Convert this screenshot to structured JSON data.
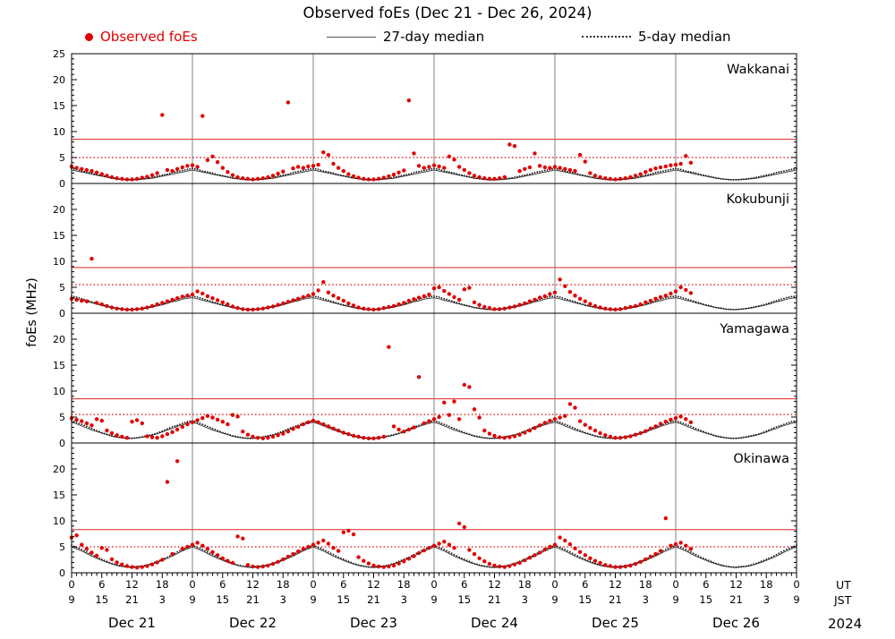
{
  "chart_data": {
    "type": "scatter",
    "title": "Observed foEs (Dec 21 - Dec 26, 2024)",
    "ylabel": "foEs (MHz)",
    "ylim": [
      0,
      25
    ],
    "y_major_ticks": [
      0,
      5,
      10,
      15,
      20,
      25
    ],
    "x_hours_range": [
      0,
      144
    ],
    "grid": "day-boundary vertical lines",
    "legend_position": "top",
    "legend": [
      {
        "label": "Observed foEs",
        "marker": "red-dot",
        "color": "#e00000"
      },
      {
        "label": "27-day median",
        "marker": "solid-line",
        "color": "#555555"
      },
      {
        "label": "5-day median",
        "marker": "dotted-line",
        "color": "#333333"
      }
    ],
    "axis_corner": {
      "ut": "UT",
      "jst": "JST",
      "year": "2024"
    },
    "x_ticks": [
      [
        0,
        "0",
        "9"
      ],
      [
        6,
        "6",
        "15"
      ],
      [
        12,
        "12",
        "21"
      ],
      [
        18,
        "18",
        "3"
      ],
      [
        24,
        "0",
        "9"
      ],
      [
        30,
        "6",
        "15"
      ],
      [
        36,
        "12",
        "21"
      ],
      [
        42,
        "18",
        "3"
      ],
      [
        48,
        "0",
        "9"
      ],
      [
        54,
        "6",
        "15"
      ],
      [
        60,
        "12",
        "21"
      ],
      [
        66,
        "18",
        "3"
      ],
      [
        72,
        "0",
        "9"
      ],
      [
        78,
        "6",
        "15"
      ],
      [
        84,
        "12",
        "21"
      ],
      [
        90,
        "18",
        "3"
      ],
      [
        96,
        "0",
        "9"
      ],
      [
        102,
        "6",
        "15"
      ],
      [
        108,
        "12",
        "21"
      ],
      [
        114,
        "18",
        "3"
      ],
      [
        120,
        "0",
        "9"
      ],
      [
        126,
        "6",
        "15"
      ],
      [
        132,
        "12",
        "21"
      ],
      [
        138,
        "18",
        "3"
      ],
      [
        144,
        "0",
        "9"
      ]
    ],
    "day_labels": [
      [
        "Dec 21",
        12
      ],
      [
        "Dec 22",
        36
      ],
      [
        "Dec 23",
        60
      ],
      [
        "Dec 24",
        84
      ],
      [
        "Dec 25",
        108
      ],
      [
        "Dec 26",
        132
      ]
    ],
    "colors": {
      "red": "#e00000",
      "median27": "#404040",
      "median5": "#111111",
      "daygrid": "#808080"
    },
    "panels": [
      {
        "station": "Wakkanai",
        "thresholds": {
          "solid_red": 8.5,
          "dotted_red": 5.0
        },
        "observed_hourly": [
          3.3,
          3.0,
          2.8,
          2.6,
          2.4,
          2.1,
          1.8,
          1.5,
          1.2,
          1.0,
          0.9,
          0.8,
          0.8,
          0.9,
          1.1,
          1.3,
          1.6,
          2.0,
          13.2,
          2.6,
          2.4,
          2.8,
          3.1,
          3.4,
          3.5,
          3.2,
          13.0,
          4.5,
          5.2,
          4.1,
          3.0,
          2.2,
          1.6,
          1.2,
          1.0,
          0.9,
          0.8,
          0.9,
          1.0,
          1.2,
          1.5,
          1.9,
          2.3,
          15.6,
          2.9,
          3.2,
          3.0,
          3.3,
          3.4,
          3.6,
          6.0,
          5.5,
          3.8,
          3.0,
          2.4,
          1.8,
          1.4,
          1.1,
          0.9,
          0.8,
          0.8,
          0.9,
          1.1,
          1.4,
          1.7,
          2.1,
          2.5,
          16.0,
          5.8,
          3.4,
          3.0,
          3.2,
          3.5,
          3.3,
          3.0,
          5.2,
          4.6,
          3.2,
          2.6,
          2.0,
          1.5,
          1.2,
          1.0,
          0.9,
          0.9,
          1.0,
          1.2,
          7.5,
          7.2,
          2.4,
          2.8,
          3.1,
          5.8,
          3.4,
          3.1,
          3.0,
          3.2,
          3.0,
          2.8,
          2.6,
          2.4,
          5.5,
          4.2,
          2.0,
          1.5,
          1.2,
          1.0,
          0.9,
          0.8,
          0.9,
          1.0,
          1.2,
          1.5,
          1.8,
          2.2,
          2.6,
          2.9,
          3.1,
          3.3,
          3.5,
          3.6,
          3.8,
          5.3,
          4.0
        ],
        "median27_diurnal": [
          2.6,
          2.4,
          2.2,
          2.0,
          1.8,
          1.6,
          1.4,
          1.2,
          1.0,
          0.9,
          0.8,
          0.7,
          0.7,
          0.7,
          0.8,
          0.9,
          1.0,
          1.2,
          1.4,
          1.6,
          1.8,
          2.0,
          2.2,
          2.4
        ],
        "median5_diurnal": [
          2.9,
          2.7,
          2.4,
          2.2,
          2.0,
          1.7,
          1.5,
          1.3,
          1.1,
          0.9,
          0.8,
          0.7,
          0.7,
          0.8,
          0.9,
          1.0,
          1.2,
          1.4,
          1.6,
          1.8,
          2.1,
          2.3,
          2.5,
          2.7
        ]
      },
      {
        "station": "Kokubunji",
        "thresholds": {
          "solid_red": 8.8,
          "dotted_red": 5.5
        },
        "observed_hourly": [
          2.8,
          2.6,
          2.4,
          2.3,
          10.5,
          2.0,
          1.7,
          1.4,
          1.1,
          0.9,
          0.8,
          0.7,
          0.7,
          0.8,
          0.9,
          1.1,
          1.4,
          1.7,
          2.0,
          2.3,
          2.6,
          2.9,
          3.2,
          3.4,
          3.6,
          4.2,
          3.8,
          3.3,
          2.9,
          2.5,
          2.1,
          1.7,
          1.3,
          1.0,
          0.8,
          0.7,
          0.7,
          0.8,
          0.9,
          1.1,
          1.3,
          1.6,
          1.9,
          2.2,
          2.5,
          2.8,
          3.1,
          3.4,
          3.7,
          4.4,
          6.0,
          4.0,
          3.4,
          2.9,
          2.4,
          1.9,
          1.5,
          1.1,
          0.9,
          0.8,
          0.7,
          0.8,
          1.0,
          1.2,
          1.4,
          1.7,
          2.0,
          2.4,
          2.7,
          3.0,
          3.3,
          3.6,
          4.8,
          5.0,
          4.3,
          3.7,
          3.1,
          2.6,
          4.6,
          4.9,
          2.1,
          1.6,
          1.2,
          1.0,
          0.8,
          0.8,
          0.9,
          1.1,
          1.3,
          1.6,
          1.9,
          2.3,
          2.6,
          3.0,
          3.3,
          3.7,
          4.0,
          6.5,
          5.2,
          4.1,
          3.4,
          2.8,
          2.3,
          1.8,
          1.4,
          1.1,
          0.9,
          0.8,
          0.7,
          0.8,
          1.0,
          1.2,
          1.4,
          1.7,
          2.1,
          2.4,
          2.8,
          3.1,
          3.4,
          3.8,
          4.2,
          5.0,
          4.5,
          3.9
        ],
        "median27_diurnal": [
          3.0,
          2.8,
          2.5,
          2.3,
          2.0,
          1.8,
          1.5,
          1.3,
          1.1,
          0.9,
          0.8,
          0.7,
          0.7,
          0.8,
          0.9,
          1.0,
          1.2,
          1.4,
          1.6,
          1.9,
          2.2,
          2.4,
          2.7,
          2.9
        ],
        "median5_diurnal": [
          3.3,
          3.1,
          2.8,
          2.5,
          2.2,
          1.9,
          1.6,
          1.4,
          1.1,
          1.0,
          0.8,
          0.7,
          0.7,
          0.8,
          0.9,
          1.1,
          1.3,
          1.5,
          1.8,
          2.1,
          2.4,
          2.7,
          3.0,
          3.2
        ]
      },
      {
        "station": "Yamagawa",
        "thresholds": {
          "solid_red": 8.5,
          "dotted_red": 5.5
        },
        "observed_hourly": [
          4.8,
          4.5,
          4.2,
          3.8,
          3.4,
          4.6,
          4.3,
          2.4,
          1.9,
          1.5,
          1.2,
          1.0,
          4.1,
          4.4,
          3.8,
          1.3,
          1.1,
          1.0,
          1.3,
          1.7,
          2.1,
          2.6,
          3.1,
          3.6,
          4.0,
          4.4,
          4.8,
          5.2,
          4.9,
          4.5,
          4.1,
          3.6,
          5.4,
          5.1,
          2.2,
          1.6,
          1.2,
          1.0,
          0.9,
          1.0,
          1.2,
          1.5,
          1.8,
          2.2,
          2.7,
          3.1,
          3.6,
          4.0,
          4.3,
          4.0,
          3.6,
          3.2,
          2.8,
          2.4,
          2.0,
          1.7,
          1.4,
          1.2,
          1.0,
          0.9,
          0.9,
          1.0,
          1.2,
          18.5,
          3.2,
          2.6,
          2.2,
          2.6,
          3.0,
          12.7,
          3.8,
          4.2,
          4.6,
          5.0,
          7.8,
          5.4,
          8.0,
          4.6,
          11.2,
          10.8,
          6.5,
          4.9,
          2.4,
          1.8,
          1.4,
          1.1,
          1.0,
          1.1,
          1.3,
          1.6,
          2.0,
          2.4,
          2.9,
          3.4,
          3.9,
          4.3,
          4.6,
          4.9,
          5.2,
          7.5,
          6.8,
          4.2,
          3.5,
          2.9,
          2.4,
          1.9,
          1.5,
          1.2,
          1.0,
          1.0,
          1.1,
          1.3,
          1.6,
          1.9,
          2.3,
          2.8,
          3.2,
          3.7,
          4.1,
          4.5,
          4.8,
          5.1,
          4.6,
          4.0
        ],
        "median27_diurnal": [
          4.0,
          3.7,
          3.3,
          2.9,
          2.5,
          2.2,
          1.9,
          1.6,
          1.3,
          1.1,
          1.0,
          0.9,
          0.9,
          1.0,
          1.1,
          1.3,
          1.5,
          1.8,
          2.1,
          2.5,
          2.8,
          3.2,
          3.5,
          3.8
        ],
        "median5_diurnal": [
          4.3,
          4.0,
          3.6,
          3.2,
          2.8,
          2.4,
          2.0,
          1.7,
          1.4,
          1.2,
          1.0,
          0.9,
          0.9,
          1.0,
          1.2,
          1.4,
          1.6,
          1.9,
          2.3,
          2.7,
          3.1,
          3.4,
          3.8,
          4.1
        ]
      },
      {
        "station": "Okinawa",
        "thresholds": {
          "solid_red": 8.3,
          "dotted_red": 5.0
        },
        "observed_hourly": [
          6.8,
          7.2,
          5.4,
          4.6,
          3.9,
          3.3,
          4.8,
          4.4,
          2.6,
          2.0,
          1.6,
          1.3,
          1.1,
          1.0,
          1.1,
          1.3,
          1.6,
          2.0,
          2.5,
          17.5,
          3.6,
          21.5,
          4.6,
          5.0,
          5.4,
          5.8,
          5.2,
          4.6,
          4.0,
          3.4,
          2.8,
          2.3,
          1.9,
          7.0,
          6.6,
          1.5,
          1.2,
          1.1,
          1.2,
          1.4,
          1.7,
          2.1,
          2.6,
          3.1,
          3.6,
          4.1,
          4.6,
          5.0,
          5.4,
          5.8,
          6.2,
          5.6,
          4.8,
          4.2,
          7.8,
          8.1,
          7.4,
          3.0,
          2.3,
          1.8,
          1.4,
          1.2,
          1.1,
          1.2,
          1.4,
          1.8,
          2.2,
          2.7,
          3.2,
          3.8,
          4.3,
          4.8,
          5.2,
          5.6,
          6.0,
          5.4,
          4.8,
          9.5,
          8.8,
          4.4,
          3.6,
          2.8,
          2.2,
          1.7,
          1.4,
          1.2,
          1.1,
          1.3,
          1.6,
          1.9,
          2.4,
          2.9,
          3.4,
          3.9,
          4.5,
          5.0,
          5.4,
          6.8,
          6.2,
          5.5,
          4.7,
          4.0,
          3.4,
          2.8,
          2.3,
          1.9,
          1.5,
          1.3,
          1.1,
          1.1,
          1.2,
          1.4,
          1.7,
          2.1,
          2.6,
          3.1,
          3.6,
          4.2,
          10.5,
          5.2,
          5.5,
          5.8,
          5.2,
          4.6
        ],
        "median27_diurnal": [
          5.0,
          4.6,
          4.2,
          3.7,
          3.2,
          2.8,
          2.4,
          2.0,
          1.7,
          1.4,
          1.2,
          1.1,
          1.0,
          1.1,
          1.2,
          1.4,
          1.7,
          2.0,
          2.4,
          2.8,
          3.2,
          3.7,
          4.2,
          4.6
        ],
        "median5_diurnal": [
          5.3,
          4.9,
          4.5,
          4.0,
          3.5,
          3.0,
          2.6,
          2.2,
          1.8,
          1.5,
          1.3,
          1.1,
          1.1,
          1.2,
          1.3,
          1.5,
          1.8,
          2.2,
          2.6,
          3.0,
          3.5,
          4.0,
          4.5,
          4.9
        ]
      }
    ]
  }
}
